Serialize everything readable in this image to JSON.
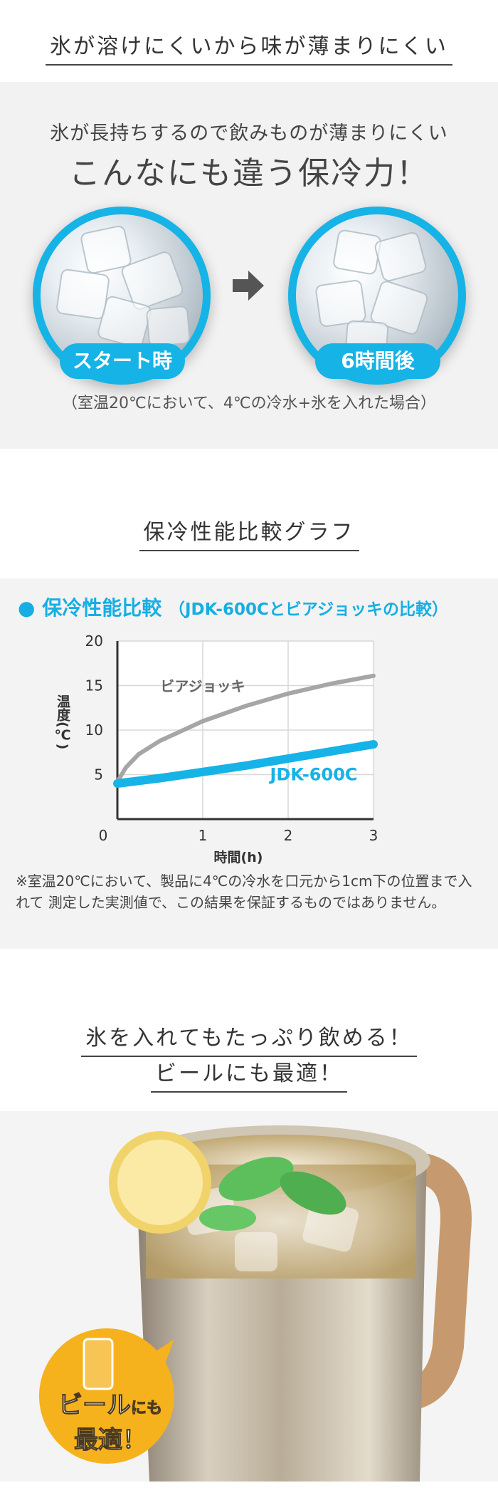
{
  "section1": {
    "heading": "氷が溶けにくいから味が薄まりにくい",
    "subtitle": "氷が長持ちするので飲みものが薄まりにくい",
    "main_title": "こんなにも違う保冷力！",
    "label_start": "スタート時",
    "label_after": "6時間後",
    "note": "（室温20℃において、4℃の冷水+氷を入れた場合）",
    "accent_color": "#16b3e6"
  },
  "section2": {
    "heading": "保冷性能比較グラフ",
    "graph_title_bullet": "●",
    "graph_title": "保冷性能比較",
    "graph_title_sub": "（JDK-600Cとビアジョッキの比較）",
    "note": "※室温20℃において、製品に4℃の冷水を口元から1cm下の位置まで入れて 測定した実測値で、この結果を保証するものではありません。"
  },
  "chart_data": {
    "type": "line",
    "xlabel": "時間(h)",
    "ylabel": "温度(℃)",
    "xlim": [
      0,
      3
    ],
    "ylim": [
      0,
      20
    ],
    "x_ticks": [
      "0",
      "1",
      "2",
      "3"
    ],
    "y_ticks": [
      "5",
      "10",
      "15",
      "20"
    ],
    "grid": true,
    "series": [
      {
        "name": "ビアジョッキ",
        "color": "#a6a6a6",
        "x": [
          0,
          0.1,
          0.25,
          0.5,
          0.75,
          1,
          1.5,
          2,
          2.5,
          3
        ],
        "y": [
          4.2,
          5.8,
          7.3,
          8.8,
          9.9,
          11.0,
          12.7,
          14.1,
          15.2,
          16.1
        ]
      },
      {
        "name": "JDK-600C",
        "color": "#16b3e6",
        "x": [
          0,
          0.5,
          1,
          1.5,
          2,
          2.5,
          3
        ],
        "y": [
          4.0,
          4.6,
          5.3,
          6.0,
          6.8,
          7.6,
          8.4
        ]
      }
    ]
  },
  "section3": {
    "heading_line1": "氷を入れてもたっぷり飲める！",
    "heading_line2": "ビールにも最適！",
    "badge_line1": "ビール",
    "badge_line1_small": "にも",
    "badge_line2": "最適！"
  }
}
